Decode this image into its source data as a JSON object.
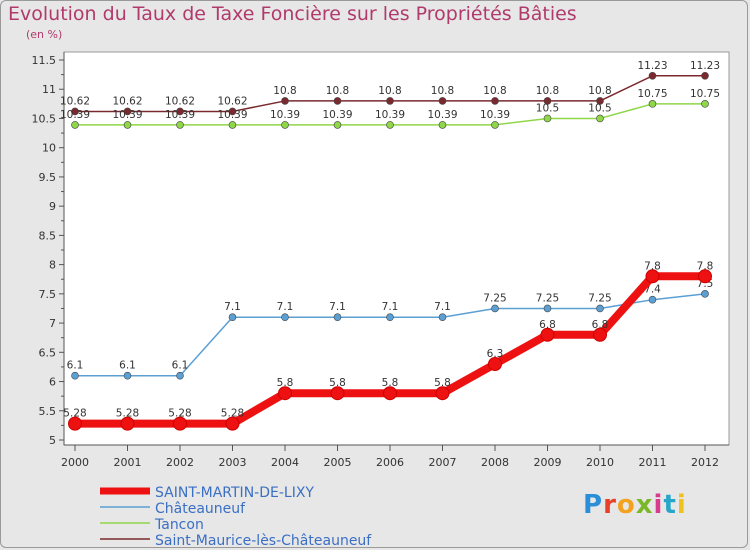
{
  "chart_data": {
    "type": "line",
    "title": "Evolution du Taux de Taxe Foncière sur les Propriétés Bâties",
    "unit_label": "(en %)",
    "x": [
      "2000",
      "2001",
      "2002",
      "2003",
      "2004",
      "2005",
      "2006",
      "2007",
      "2008",
      "2009",
      "2010",
      "2011",
      "2012"
    ],
    "ylim": [
      5,
      11.5
    ],
    "yticks": [
      "5",
      "5.5",
      "6",
      "6.5",
      "7",
      "7.5",
      "8",
      "8.5",
      "9",
      "9.5",
      "10",
      "10.5",
      "11",
      "11.5"
    ],
    "grid": false,
    "series": [
      {
        "name": "Saint-Maurice-lès-Châteauneuf",
        "color": "#7a2a2e",
        "values": [
          10.62,
          10.62,
          10.62,
          10.62,
          10.8,
          10.8,
          10.8,
          10.8,
          10.8,
          10.8,
          10.8,
          11.23,
          11.23
        ],
        "labels": [
          "10.62",
          "10.62",
          "10.62",
          "10.62",
          "10.8",
          "10.8",
          "10.8",
          "10.8",
          "10.8",
          "10.8",
          "10.8",
          "11.23",
          "11.23"
        ]
      },
      {
        "name": "Tancon",
        "color": "#8fd648",
        "values": [
          10.39,
          10.39,
          10.39,
          10.39,
          10.39,
          10.39,
          10.39,
          10.39,
          10.39,
          10.5,
          10.5,
          10.75,
          10.75
        ],
        "labels": [
          "10.39",
          "10.39",
          "10.39",
          "10.39",
          "10.39",
          "10.39",
          "10.39",
          "10.39",
          "10.39",
          "10.5",
          "10.5",
          "10.75",
          "10.75"
        ]
      },
      {
        "name": "Châteauneuf",
        "color": "#5b9fd3",
        "values": [
          6.1,
          6.1,
          6.1,
          7.1,
          7.1,
          7.1,
          7.1,
          7.1,
          7.25,
          7.25,
          7.25,
          7.4,
          7.5
        ],
        "labels": [
          "6.1",
          "6.1",
          "6.1",
          "7.1",
          "7.1",
          "7.1",
          "7.1",
          "7.1",
          "7.25",
          "7.25",
          "7.25",
          "7.4",
          "7.5"
        ]
      },
      {
        "name": "SAINT-MARTIN-DE-LIXY",
        "color": "#ee1111",
        "values": [
          5.28,
          5.28,
          5.28,
          5.28,
          5.8,
          5.8,
          5.8,
          5.8,
          6.3,
          6.8,
          6.8,
          7.8,
          7.8
        ],
        "labels": [
          "5.28",
          "5.28",
          "5.28",
          "5.28",
          "5.8",
          "5.8",
          "5.8",
          "5.8",
          "6.3",
          "6.8",
          "6.8",
          "7.8",
          "7.8"
        ]
      }
    ],
    "legend": {
      "position": "bottom-left",
      "entries": [
        "SAINT-MARTIN-DE-LIXY",
        "Châteauneuf",
        "Tancon",
        "Saint-Maurice-lès-Châteauneuf"
      ]
    }
  },
  "logo": {
    "letters": [
      "P",
      "r",
      "o",
      "x",
      "i",
      "t",
      "i"
    ],
    "colors": [
      "#2a8fd8",
      "#e8412a",
      "#f2a21f",
      "#7ab829",
      "#d83a8c",
      "#27a6c9",
      "#f0c21e"
    ]
  }
}
